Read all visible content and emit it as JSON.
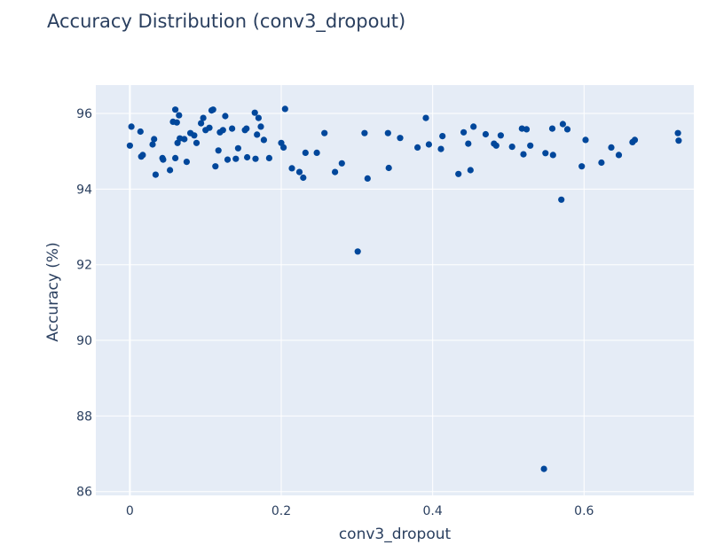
{
  "chart_data": {
    "type": "scatter",
    "title": "Accuracy Distribution (conv3_dropout)",
    "xlabel": "conv3_dropout",
    "ylabel": "Accuracy (%)",
    "xlim": [
      -0.045,
      0.745
    ],
    "ylim": [
      85.9,
      96.75
    ],
    "x_ticks": [
      0,
      0.2,
      0.4,
      0.6
    ],
    "x_tick_labels": [
      "0",
      "0.2",
      "0.4",
      "0.6"
    ],
    "y_ticks": [
      86,
      88,
      90,
      92,
      94,
      96
    ],
    "y_tick_labels": [
      "86",
      "88",
      "90",
      "92",
      "94",
      "96"
    ],
    "grid": true,
    "legend": "none",
    "marker_color": "#00479b",
    "background": "#e5ecf6",
    "points": [
      [
        0.0,
        95.15
      ],
      [
        0.002,
        95.65
      ],
      [
        0.014,
        95.52
      ],
      [
        0.015,
        94.86
      ],
      [
        0.017,
        94.9
      ],
      [
        0.03,
        95.18
      ],
      [
        0.032,
        95.32
      ],
      [
        0.034,
        94.38
      ],
      [
        0.043,
        94.82
      ],
      [
        0.044,
        94.78
      ],
      [
        0.053,
        94.5
      ],
      [
        0.057,
        95.78
      ],
      [
        0.06,
        96.1
      ],
      [
        0.06,
        94.82
      ],
      [
        0.062,
        95.76
      ],
      [
        0.063,
        95.22
      ],
      [
        0.065,
        95.95
      ],
      [
        0.066,
        95.34
      ],
      [
        0.072,
        95.32
      ],
      [
        0.075,
        94.72
      ],
      [
        0.08,
        95.48
      ],
      [
        0.085,
        95.42
      ],
      [
        0.088,
        95.22
      ],
      [
        0.094,
        95.74
      ],
      [
        0.097,
        95.88
      ],
      [
        0.1,
        95.56
      ],
      [
        0.105,
        95.62
      ],
      [
        0.108,
        96.08
      ],
      [
        0.11,
        96.1
      ],
      [
        0.113,
        94.6
      ],
      [
        0.117,
        95.02
      ],
      [
        0.119,
        95.5
      ],
      [
        0.123,
        95.56
      ],
      [
        0.126,
        95.93
      ],
      [
        0.129,
        94.78
      ],
      [
        0.135,
        95.6
      ],
      [
        0.14,
        94.8
      ],
      [
        0.143,
        95.08
      ],
      [
        0.152,
        95.56
      ],
      [
        0.154,
        95.6
      ],
      [
        0.155,
        94.84
      ],
      [
        0.165,
        96.02
      ],
      [
        0.166,
        94.8
      ],
      [
        0.168,
        95.44
      ],
      [
        0.17,
        95.88
      ],
      [
        0.173,
        95.65
      ],
      [
        0.177,
        95.3
      ],
      [
        0.184,
        94.82
      ],
      [
        0.2,
        95.22
      ],
      [
        0.203,
        95.1
      ],
      [
        0.205,
        96.12
      ],
      [
        0.214,
        94.55
      ],
      [
        0.224,
        94.45
      ],
      [
        0.229,
        94.3
      ],
      [
        0.232,
        94.96
      ],
      [
        0.247,
        94.96
      ],
      [
        0.257,
        95.48
      ],
      [
        0.271,
        94.45
      ],
      [
        0.28,
        94.68
      ],
      [
        0.301,
        92.35
      ],
      [
        0.31,
        95.48
      ],
      [
        0.314,
        94.28
      ],
      [
        0.341,
        95.48
      ],
      [
        0.342,
        94.56
      ],
      [
        0.357,
        95.35
      ],
      [
        0.38,
        95.1
      ],
      [
        0.391,
        95.88
      ],
      [
        0.395,
        95.18
      ],
      [
        0.411,
        95.06
      ],
      [
        0.413,
        95.4
      ],
      [
        0.434,
        94.4
      ],
      [
        0.441,
        95.5
      ],
      [
        0.447,
        95.2
      ],
      [
        0.45,
        94.5
      ],
      [
        0.454,
        95.65
      ],
      [
        0.47,
        95.45
      ],
      [
        0.481,
        95.2
      ],
      [
        0.484,
        95.15
      ],
      [
        0.49,
        95.42
      ],
      [
        0.505,
        95.12
      ],
      [
        0.518,
        95.6
      ],
      [
        0.52,
        94.92
      ],
      [
        0.524,
        95.58
      ],
      [
        0.529,
        95.15
      ],
      [
        0.547,
        86.6
      ],
      [
        0.549,
        94.95
      ],
      [
        0.558,
        95.6
      ],
      [
        0.559,
        94.9
      ],
      [
        0.57,
        93.72
      ],
      [
        0.572,
        95.72
      ],
      [
        0.578,
        95.58
      ],
      [
        0.597,
        94.6
      ],
      [
        0.602,
        95.3
      ],
      [
        0.623,
        94.7
      ],
      [
        0.636,
        95.1
      ],
      [
        0.646,
        94.9
      ],
      [
        0.664,
        95.24
      ],
      [
        0.667,
        95.3
      ],
      [
        0.724,
        95.48
      ],
      [
        0.725,
        95.28
      ]
    ]
  }
}
